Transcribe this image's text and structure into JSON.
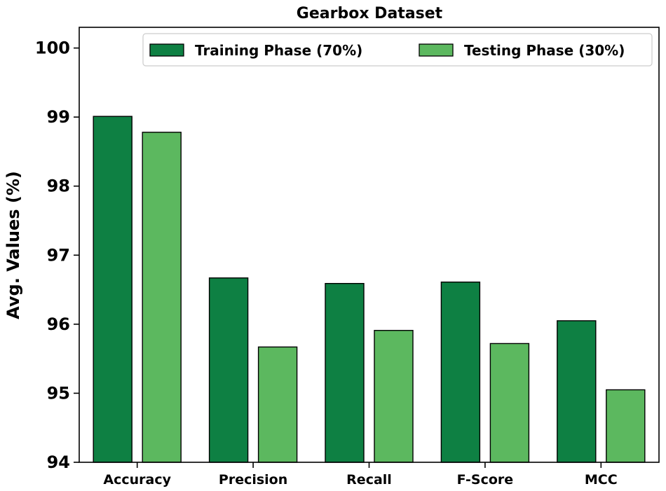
{
  "chart_data": {
    "type": "bar",
    "title": "Gearbox Dataset",
    "xlabel": "",
    "ylabel": "Avg. Values (%)",
    "ylim": [
      94,
      100.3
    ],
    "yticks": [
      94,
      95,
      96,
      97,
      98,
      99,
      100
    ],
    "grid": false,
    "legend_position": "top-right",
    "categories": [
      "Accuracy",
      "Precision",
      "Recall",
      "F-Score",
      "MCC"
    ],
    "series": [
      {
        "name": "Training Phase (70%)",
        "color": "#0e8043",
        "values": [
          99.01,
          96.67,
          96.59,
          96.61,
          96.05
        ]
      },
      {
        "name": "Testing Phase (30%)",
        "color": "#5cb85f",
        "values": [
          98.78,
          95.67,
          95.91,
          95.72,
          95.05
        ]
      }
    ]
  }
}
